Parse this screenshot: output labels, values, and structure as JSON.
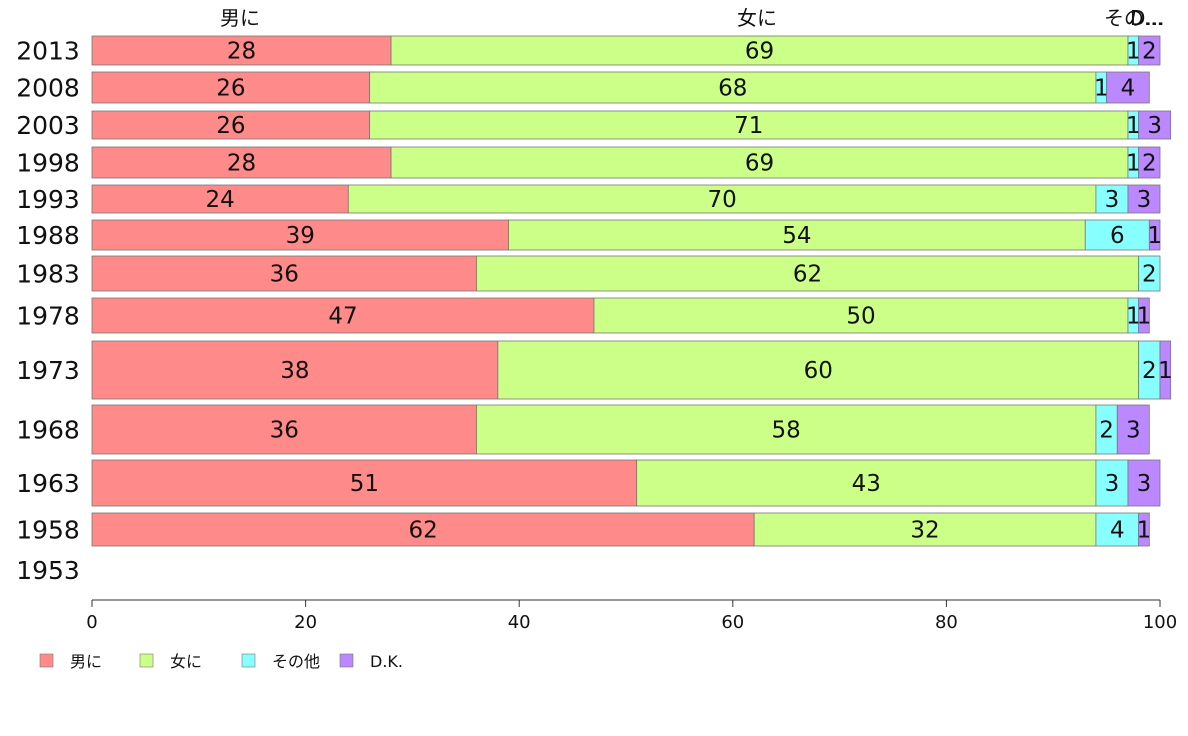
{
  "chart_data": {
    "type": "bar",
    "orientation": "horizontal",
    "stacked": true,
    "title": "",
    "xlabel": "",
    "ylabel": "",
    "xlim": [
      0,
      100
    ],
    "x_ticks": [
      0,
      20,
      40,
      60,
      80,
      100
    ],
    "grid": false,
    "legend_position": "bottom-left",
    "categories": [
      "2013",
      "2008",
      "2003",
      "1998",
      "1993",
      "1988",
      "1983",
      "1978",
      "1973",
      "1968",
      "1963",
      "1958",
      "1953"
    ],
    "top_labels": [
      "男に",
      "女に",
      "その...",
      "D..."
    ],
    "series": [
      {
        "name": "男に",
        "color": "#ff8a8a",
        "values": [
          28,
          26,
          26,
          28,
          24,
          39,
          36,
          47,
          38,
          36,
          51,
          62,
          null
        ]
      },
      {
        "name": "女に",
        "color": "#ccff88",
        "values": [
          69,
          68,
          71,
          69,
          70,
          54,
          62,
          50,
          60,
          58,
          43,
          32,
          null
        ]
      },
      {
        "name": "その他",
        "color": "#88ffff",
        "values": [
          1,
          1,
          1,
          1,
          3,
          6,
          2,
          1,
          2,
          2,
          3,
          4,
          null
        ]
      },
      {
        "name": "D.K.",
        "color": "#bb88ff",
        "values": [
          2,
          4,
          3,
          2,
          3,
          1,
          0,
          1,
          1,
          3,
          3,
          1,
          null
        ]
      }
    ]
  }
}
